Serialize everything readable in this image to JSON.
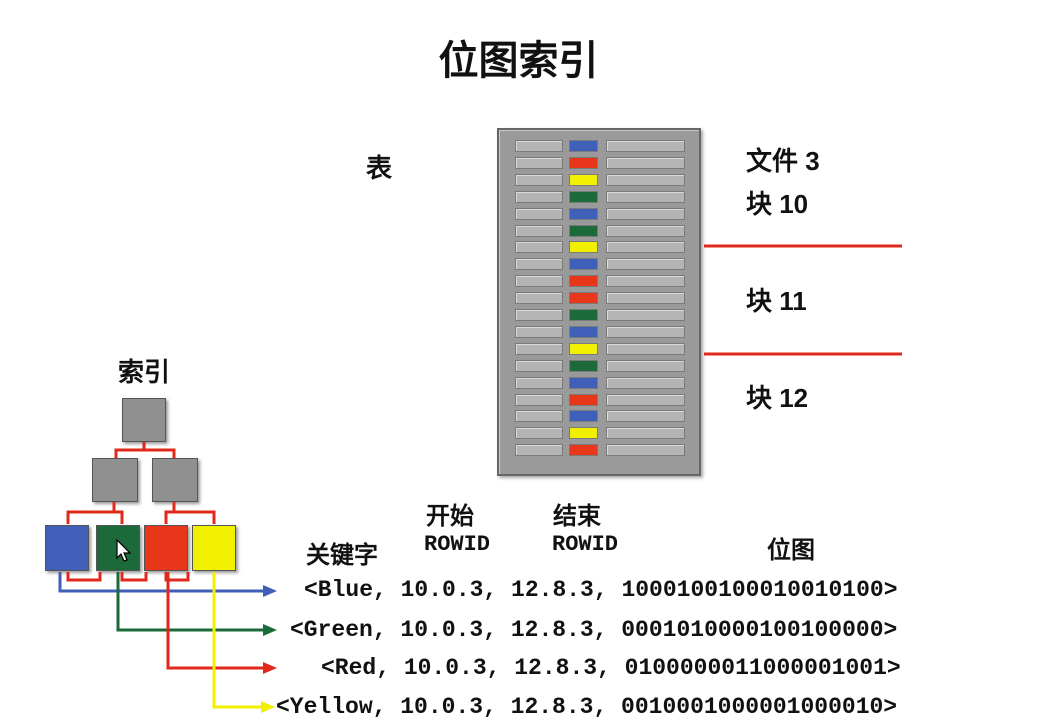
{
  "title": "位图索引",
  "labels": {
    "table": "表",
    "index": "索引",
    "file": "文件 3",
    "block10": "块 10",
    "block11": "块 11",
    "block12": "块 12",
    "key": "关键字",
    "start_top": "开始",
    "start_bottom": "ROWID",
    "end_top": "结束",
    "end_bottom": "ROWID",
    "bitmap": "位图"
  },
  "colors": {
    "blue": "#3f5fb8",
    "green": "#1c6a3a",
    "red": "#e8361b",
    "yellow": "#f0f000",
    "gray_node": "#909090",
    "connector_red": "#e0281c"
  },
  "table_rows": [
    "blue",
    "red",
    "yellow",
    "green",
    "blue",
    "green",
    "yellow",
    "blue",
    "red",
    "red",
    "green",
    "blue",
    "yellow",
    "green",
    "blue",
    "red",
    "blue",
    "yellow",
    "red"
  ],
  "index_leaves": [
    "blue",
    "green",
    "red",
    "yellow"
  ],
  "cursor_icon": "mouse-pointer-icon",
  "entries": [
    {
      "text": "<Blue, 10.0.3, 12.8.3, 1000100100010010100>",
      "color": "blue"
    },
    {
      "text": "<Green, 10.0.3, 12.8.3, 0001010000100100000>",
      "color": "green"
    },
    {
      "text": "<Red, 10.0.3, 12.8.3, 0100000011000001001>",
      "color": "red"
    },
    {
      "text": "<Yellow, 10.0.3, 12.8.3, 0010001000001000010>",
      "color": "yellow"
    }
  ]
}
